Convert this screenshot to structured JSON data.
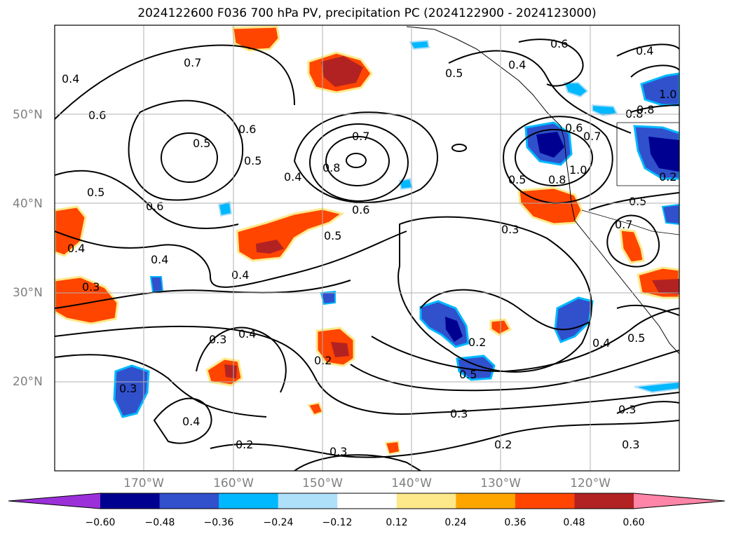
{
  "title": "2024122600 F036 700 hPa PV, precipitation PC (2024122900 - 2024123000)",
  "map": {
    "projection": "cylindrical",
    "lon_range": [
      -180,
      -110
    ],
    "lat_range": [
      10,
      60
    ],
    "gridlines": true,
    "lat_ticks": [
      "20°N",
      "30°N",
      "40°N",
      "50°N"
    ],
    "lon_ticks": [
      "170°W",
      "160°W",
      "150°W",
      "140°W",
      "130°W",
      "120°W"
    ],
    "contour_color": "#000000",
    "contour_labels": [
      "0.4",
      "0.6",
      "0.7",
      "0.5",
      "0.6",
      "0.5",
      "0.4",
      "0.7",
      "0.8",
      "0.5",
      "0.6",
      "0.4",
      "0.4",
      "0.3",
      "0.4",
      "0.5",
      "0.6",
      "0.3",
      "0.4",
      "0.2",
      "0.3",
      "0.2",
      "0.4",
      "0.5",
      "0.3",
      "0.2",
      "0.3",
      "0.2",
      "0.3",
      "0.4",
      "0.6",
      "0.5",
      "0.8",
      "1.0",
      "0.7",
      "0.6",
      "0.8",
      "0.5",
      "0.7",
      "0.5",
      "0.4",
      "0.8",
      "1.0",
      "0.3",
      "0.5",
      "0.4",
      "0.3",
      "0.2"
    ]
  },
  "colorbar": {
    "colors": [
      "#9b30d9",
      "#000090",
      "#3050cc",
      "#00b8ff",
      "#aee0fa",
      "#ffffff",
      "#fde98a",
      "#ffa500",
      "#ff4500",
      "#b22222",
      "#ff85a8"
    ],
    "tick_labels": [
      "−0.60",
      "−0.48",
      "−0.36",
      "−0.24",
      "−0.12",
      "0.12",
      "0.24",
      "0.36",
      "0.48",
      "0.60"
    ],
    "extend": "both"
  }
}
